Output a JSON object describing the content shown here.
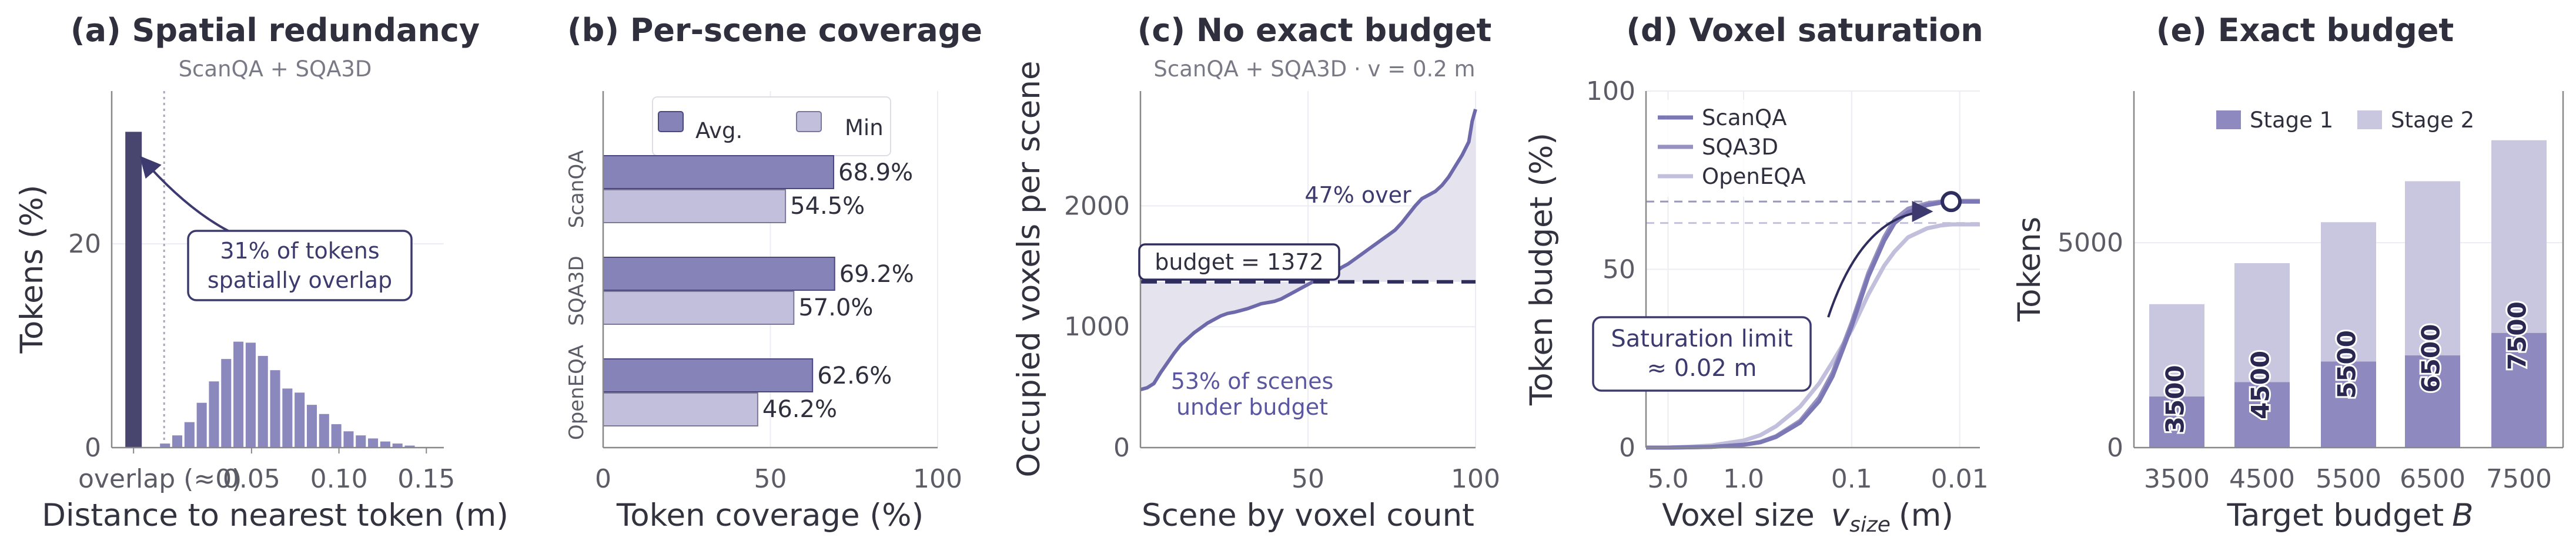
{
  "chart_data": [
    {
      "type": "bar",
      "title": "(a) Spatial redundancy",
      "subtitle": "ScanQA + SQA3D",
      "xlabel": "Distance to nearest token (m)",
      "ylabel": "Tokens (%)",
      "ylim": [
        0,
        35
      ],
      "xlim": [
        -0.03,
        0.16
      ],
      "yticks": [
        0,
        20
      ],
      "xticks": [
        {
          "v": -0.0175,
          "label": "overlap (≈0)"
        },
        {
          "v": 0.05,
          "label": "0.05"
        },
        {
          "v": 0.1,
          "label": "0.10"
        },
        {
          "v": 0.15,
          "label": "0.15"
        }
      ],
      "overlap_bar": {
        "x": -0.0175,
        "value": 31
      },
      "bins": [
        {
          "x": 0.0005,
          "value": 0.4
        },
        {
          "x": 0.0075,
          "value": 1.2
        },
        {
          "x": 0.0145,
          "value": 2.5
        },
        {
          "x": 0.0215,
          "value": 4.4
        },
        {
          "x": 0.0285,
          "value": 6.5
        },
        {
          "x": 0.0355,
          "value": 8.7
        },
        {
          "x": 0.0425,
          "value": 10.4
        },
        {
          "x": 0.0495,
          "value": 10.3
        },
        {
          "x": 0.0565,
          "value": 9.0
        },
        {
          "x": 0.0635,
          "value": 7.6
        },
        {
          "x": 0.0705,
          "value": 5.8
        },
        {
          "x": 0.0775,
          "value": 5.4
        },
        {
          "x": 0.0845,
          "value": 4.2
        },
        {
          "x": 0.0915,
          "value": 3.3
        },
        {
          "x": 0.0985,
          "value": 2.3
        },
        {
          "x": 0.1055,
          "value": 1.6
        },
        {
          "x": 0.1125,
          "value": 1.2
        },
        {
          "x": 0.1195,
          "value": 0.9
        },
        {
          "x": 0.1265,
          "value": 0.6
        },
        {
          "x": 0.1335,
          "value": 0.4
        },
        {
          "x": 0.1405,
          "value": 0.2
        }
      ],
      "annotation": [
        "31% of tokens",
        "spatially overlap"
      ]
    },
    {
      "type": "bar",
      "title": "(b) Per-scene coverage",
      "xlabel": "Token coverage (%)",
      "xlim": [
        0,
        100
      ],
      "xticks": [
        0,
        50,
        100
      ],
      "categories": [
        "ScanQA",
        "SQA3D",
        "OpenEQA"
      ],
      "series": [
        {
          "name": "Avg.",
          "values": [
            68.9,
            69.2,
            62.6
          ],
          "labels": [
            "68.9%",
            "69.2%",
            "62.6%"
          ]
        },
        {
          "name": "Min",
          "values": [
            54.5,
            57.0,
            46.2
          ],
          "labels": [
            "54.5%",
            "57.0%",
            "46.2%"
          ]
        }
      ]
    },
    {
      "type": "line",
      "title": "(c) No exact budget",
      "subtitle": "ScanQA + SQA3D · v = 0.2 m",
      "xlabel": "Scene by voxel count",
      "ylabel": "Occupied voxels per scene",
      "xlim": [
        0,
        100
      ],
      "ylim": [
        0,
        2950
      ],
      "xticks": [
        50,
        100
      ],
      "yticks": [
        0,
        1000,
        2000
      ],
      "budget": 1372,
      "budget_label": "budget = 1372",
      "x": [
        0,
        2,
        4,
        6,
        8,
        10,
        12,
        14,
        16,
        18,
        20,
        22,
        24,
        26,
        28,
        30,
        32,
        34,
        36,
        38,
        40,
        42,
        44,
        46,
        48,
        50,
        52,
        54,
        56,
        58,
        60,
        62,
        64,
        66,
        68,
        70,
        72,
        74,
        76,
        78,
        80,
        82,
        84,
        86,
        88,
        90,
        92,
        94,
        96,
        98,
        99,
        100
      ],
      "y": [
        480,
        495,
        530,
        620,
        700,
        780,
        850,
        900,
        950,
        990,
        1030,
        1060,
        1090,
        1110,
        1120,
        1135,
        1150,
        1170,
        1190,
        1200,
        1210,
        1230,
        1260,
        1290,
        1320,
        1350,
        1380,
        1395,
        1420,
        1450,
        1490,
        1520,
        1560,
        1600,
        1640,
        1680,
        1720,
        1760,
        1800,
        1860,
        1930,
        2000,
        2060,
        2090,
        2120,
        2170,
        2240,
        2330,
        2420,
        2530,
        2700,
        2800
      ],
      "annotations": [
        "47% over",
        "53% of scenes",
        "under budget"
      ]
    },
    {
      "type": "line",
      "title": "(d) Voxel saturation",
      "xlabel": "Voxel size",
      "xlabel_var": "v",
      "xlabel_sub": "size",
      "xlabel_unit": "(m)",
      "ylabel": "Token budget (%)",
      "xscale": "log-reversed",
      "xlim": [
        8.0,
        0.0065
      ],
      "ylim": [
        0,
        100
      ],
      "xticks": [
        {
          "v": 5.0,
          "label": "5.0"
        },
        {
          "v": 1.0,
          "label": "1.0"
        },
        {
          "v": 0.1,
          "label": "0.1"
        },
        {
          "v": 0.01,
          "label": "0.01"
        }
      ],
      "yticks": [
        0,
        50,
        100
      ],
      "hlines": [
        69,
        63
      ],
      "saturation_point": {
        "x": 0.012,
        "y": 69
      },
      "x": [
        8.0,
        5.0,
        3.0,
        2.0,
        1.0,
        0.7,
        0.5,
        0.3,
        0.2,
        0.15,
        0.1,
        0.07,
        0.05,
        0.04,
        0.03,
        0.02,
        0.015,
        0.012,
        0.01,
        0.0065
      ],
      "series": [
        {
          "name": "ScanQA",
          "color": "#7c78b5",
          "values": [
            0,
            0,
            0.1,
            0.2,
            0.8,
            1.5,
            3,
            7,
            13,
            20,
            34,
            48,
            58,
            63,
            66,
            68,
            68.7,
            69,
            69,
            69
          ]
        },
        {
          "name": "SQA3D",
          "color": "#9691c1",
          "values": [
            0,
            0,
            0.1,
            0.2,
            0.8,
            1.6,
            3.2,
            7.5,
            14,
            21,
            35,
            49,
            59,
            64,
            67,
            68.5,
            69,
            69.2,
            69.2,
            69.2
          ]
        },
        {
          "name": "OpenEQA",
          "color": "#c2bfdc",
          "values": [
            0,
            0,
            0.3,
            0.6,
            2,
            3.5,
            6,
            11.5,
            18,
            24,
            33,
            43,
            51,
            55,
            59,
            61.5,
            62.3,
            62.6,
            62.6,
            62.6
          ]
        }
      ],
      "annotation": [
        "Saturation limit",
        "≈ 0.02 m"
      ]
    },
    {
      "type": "bar",
      "title": "(e) Exact budget",
      "xlabel": "Target budget",
      "xlabel_var": "B",
      "ylabel": "Tokens",
      "ylim": [
        0,
        8700
      ],
      "yticks": [
        0,
        5000
      ],
      "categories": [
        "3500",
        "4500",
        "5500",
        "6500",
        "7500"
      ],
      "series": [
        {
          "name": "Stage 1",
          "values": [
            1250,
            1600,
            2100,
            2250,
            2800
          ]
        },
        {
          "name": "Stage 2",
          "values": [
            2250,
            2900,
            3400,
            4250,
            4700
          ]
        }
      ],
      "bar_labels": [
        "3500",
        "4500",
        "5500",
        "6500",
        "7500"
      ]
    }
  ]
}
